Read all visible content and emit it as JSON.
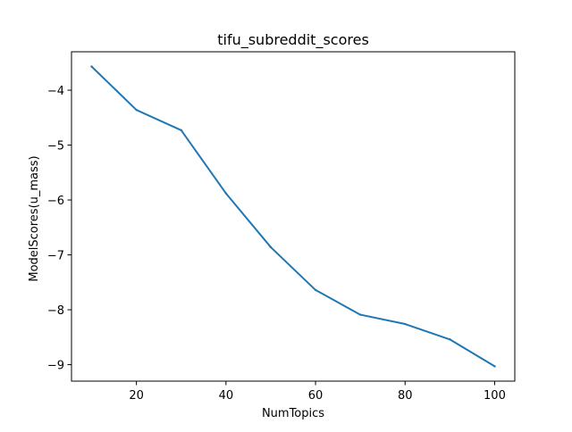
{
  "chart_data": {
    "type": "line",
    "title": "tifu_subreddit_scores",
    "xlabel": "NumTopics",
    "ylabel": "ModelScores(u_mass)",
    "xlim": [
      5.5,
      104.5
    ],
    "ylim": [
      -9.3,
      -3.3
    ],
    "xticks": [
      20,
      40,
      60,
      80,
      100
    ],
    "yticks": [
      -9,
      -8,
      -7,
      -6,
      -5,
      -4
    ],
    "xtick_labels": [
      "20",
      "40",
      "60",
      "80",
      "100"
    ],
    "ytick_labels": [
      "−9",
      "−8",
      "−7",
      "−6",
      "−5",
      "−4"
    ],
    "grid": false,
    "legend": "none",
    "series": [
      {
        "color": "#1f77b4",
        "x": [
          10,
          20,
          30,
          40,
          50,
          60,
          70,
          80,
          90,
          100
        ],
        "y": [
          -3.57,
          -4.36,
          -4.73,
          -5.88,
          -6.86,
          -7.64,
          -8.09,
          -8.26,
          -8.54,
          -9.03
        ]
      }
    ]
  }
}
